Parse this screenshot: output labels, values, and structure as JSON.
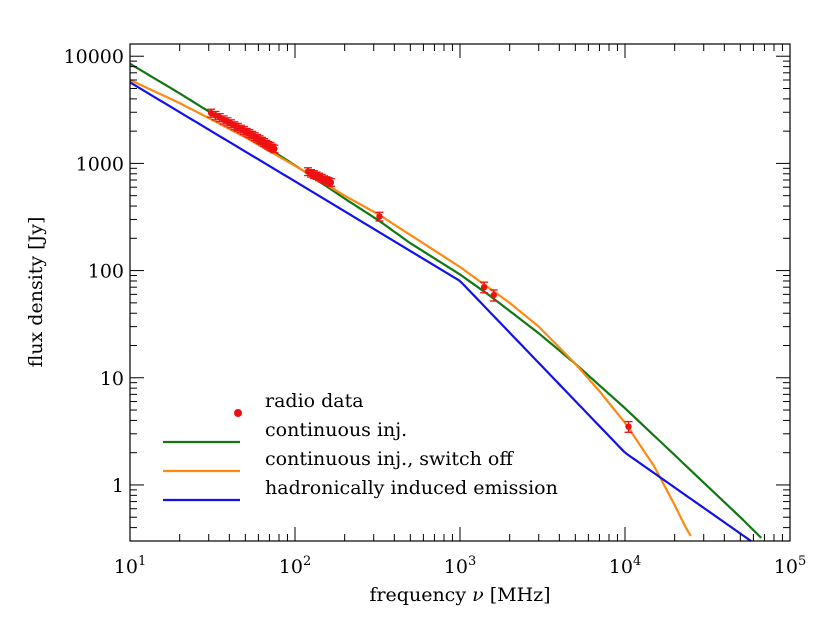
{
  "chart_data": {
    "type": "line",
    "x_scale": "log",
    "y_scale": "log",
    "xlim": [
      10,
      100000
    ],
    "ylim": [
      0.3,
      13000
    ],
    "xlabel_prefix": "frequency ",
    "xlabel_symbol": "ν",
    "xlabel_suffix": " [MHz]",
    "ylabel": "flux density [Jy]",
    "x_ticks": [
      {
        "value": 10,
        "base": "10",
        "exp": "1"
      },
      {
        "value": 100,
        "base": "10",
        "exp": "2"
      },
      {
        "value": 1000,
        "base": "10",
        "exp": "3"
      },
      {
        "value": 10000,
        "base": "10",
        "exp": "4"
      },
      {
        "value": 100000,
        "base": "10",
        "exp": "5"
      }
    ],
    "y_ticks": [
      {
        "value": 1,
        "label": "1"
      },
      {
        "value": 10,
        "label": "10"
      },
      {
        "value": 100,
        "label": "100"
      },
      {
        "value": 1000,
        "label": "1000"
      },
      {
        "value": 10000,
        "label": "10000"
      }
    ],
    "legend_position": "bottom-left",
    "series": [
      {
        "name": "radio data",
        "kind": "scatter",
        "color": "#ee1111",
        "points": [
          {
            "x": 31,
            "y": 2950,
            "err": 250
          },
          {
            "x": 33,
            "y": 2800,
            "err": 250
          },
          {
            "x": 35,
            "y": 2680,
            "err": 230
          },
          {
            "x": 37,
            "y": 2550,
            "err": 220
          },
          {
            "x": 39,
            "y": 2450,
            "err": 210
          },
          {
            "x": 41,
            "y": 2350,
            "err": 200
          },
          {
            "x": 43,
            "y": 2250,
            "err": 190
          },
          {
            "x": 45,
            "y": 2180,
            "err": 180
          },
          {
            "x": 47,
            "y": 2100,
            "err": 170
          },
          {
            "x": 49,
            "y": 2030,
            "err": 170
          },
          {
            "x": 51,
            "y": 1960,
            "err": 160
          },
          {
            "x": 53,
            "y": 1900,
            "err": 160
          },
          {
            "x": 55,
            "y": 1840,
            "err": 150
          },
          {
            "x": 57,
            "y": 1780,
            "err": 150
          },
          {
            "x": 59,
            "y": 1720,
            "err": 140
          },
          {
            "x": 61,
            "y": 1670,
            "err": 140
          },
          {
            "x": 63,
            "y": 1620,
            "err": 130
          },
          {
            "x": 65,
            "y": 1570,
            "err": 130
          },
          {
            "x": 67,
            "y": 1520,
            "err": 120
          },
          {
            "x": 69,
            "y": 1480,
            "err": 120
          },
          {
            "x": 71,
            "y": 1440,
            "err": 120
          },
          {
            "x": 73,
            "y": 1400,
            "err": 110
          },
          {
            "x": 75,
            "y": 1370,
            "err": 110
          },
          {
            "x": 120,
            "y": 840,
            "err": 70
          },
          {
            "x": 125,
            "y": 810,
            "err": 65
          },
          {
            "x": 130,
            "y": 790,
            "err": 65
          },
          {
            "x": 135,
            "y": 770,
            "err": 60
          },
          {
            "x": 140,
            "y": 750,
            "err": 60
          },
          {
            "x": 145,
            "y": 730,
            "err": 60
          },
          {
            "x": 150,
            "y": 710,
            "err": 55
          },
          {
            "x": 155,
            "y": 695,
            "err": 55
          },
          {
            "x": 160,
            "y": 680,
            "err": 55
          },
          {
            "x": 165,
            "y": 665,
            "err": 55
          },
          {
            "x": 325,
            "y": 320,
            "err": 30
          },
          {
            "x": 1400,
            "y": 70,
            "err": 8
          },
          {
            "x": 1600,
            "y": 59,
            "err": 7
          },
          {
            "x": 10500,
            "y": 3.5,
            "err": 0.4
          }
        ]
      },
      {
        "name": "continuous inj.",
        "kind": "line",
        "color": "#117711",
        "points": [
          {
            "x": 10,
            "y": 8500
          },
          {
            "x": 20,
            "y": 4500
          },
          {
            "x": 30,
            "y": 3050
          },
          {
            "x": 50,
            "y": 1900
          },
          {
            "x": 100,
            "y": 960
          },
          {
            "x": 200,
            "y": 470
          },
          {
            "x": 325,
            "y": 290
          },
          {
            "x": 500,
            "y": 180
          },
          {
            "x": 1000,
            "y": 92
          },
          {
            "x": 1500,
            "y": 59
          },
          {
            "x": 2000,
            "y": 42
          },
          {
            "x": 3000,
            "y": 26
          },
          {
            "x": 5000,
            "y": 13.5
          },
          {
            "x": 10000,
            "y": 5.2
          },
          {
            "x": 20000,
            "y": 1.9
          },
          {
            "x": 30000,
            "y": 1.05
          },
          {
            "x": 50000,
            "y": 0.5
          },
          {
            "x": 70000,
            "y": 0.3
          }
        ]
      },
      {
        "name": "continuous inj., switch off",
        "kind": "line",
        "color": "#ff8811",
        "points": [
          {
            "x": 10,
            "y": 6000
          },
          {
            "x": 20,
            "y": 3650
          },
          {
            "x": 30,
            "y": 2650
          },
          {
            "x": 50,
            "y": 1750
          },
          {
            "x": 100,
            "y": 950
          },
          {
            "x": 200,
            "y": 500
          },
          {
            "x": 325,
            "y": 330
          },
          {
            "x": 500,
            "y": 215
          },
          {
            "x": 1000,
            "y": 108
          },
          {
            "x": 2000,
            "y": 50
          },
          {
            "x": 3000,
            "y": 30
          },
          {
            "x": 5000,
            "y": 13.5
          },
          {
            "x": 7000,
            "y": 7.5
          },
          {
            "x": 10000,
            "y": 3.8
          },
          {
            "x": 15000,
            "y": 1.5
          },
          {
            "x": 20000,
            "y": 0.65
          },
          {
            "x": 23000,
            "y": 0.42
          },
          {
            "x": 26000,
            "y": 0.3
          }
        ]
      },
      {
        "name": "hadronically induced emission",
        "kind": "line",
        "color": "#1111ee",
        "points": [
          {
            "x": 10,
            "y": 5700
          },
          {
            "x": 100,
            "y": 680
          },
          {
            "x": 1000,
            "y": 80
          },
          {
            "x": 10000,
            "y": 2.0
          },
          {
            "x": 58000,
            "y": 0.3
          }
        ]
      }
    ]
  }
}
